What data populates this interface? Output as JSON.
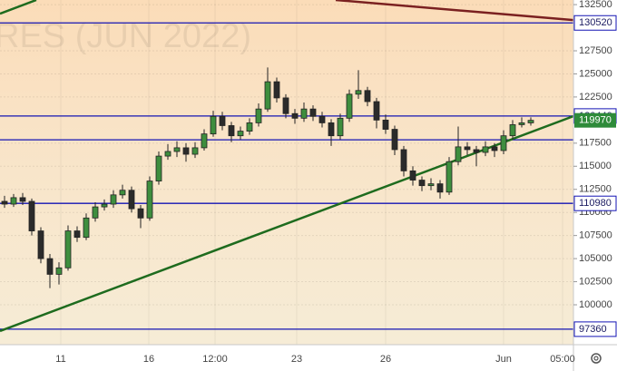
{
  "chart_data": {
    "type": "candlestick",
    "watermark": "RES (JUN 2022)",
    "xlim": [
      -0.5,
      62.7
    ],
    "ylim": [
      95680,
      133000
    ],
    "yticks": [
      132500,
      127500,
      125000,
      122500,
      117500,
      115000,
      112500,
      110000,
      107500,
      105000,
      102500,
      100000
    ],
    "xticks": [
      {
        "value": 6.2,
        "label": "11"
      },
      {
        "value": 15.9,
        "label": "16"
      },
      {
        "value": 23.2,
        "label": "12:00"
      },
      {
        "value": 32.2,
        "label": "23"
      },
      {
        "value": 42,
        "label": "26"
      },
      {
        "value": 55,
        "label": "Jun"
      },
      {
        "value": 61.5,
        "label": "05:00"
      }
    ],
    "grid": true,
    "up_color": "#3e8e3e",
    "down_color": "#2b2b2b",
    "level_color": "#1414b4",
    "levels": [
      130520,
      120440,
      110980,
      97360
    ],
    "unlabeled_levels": [
      117860
    ],
    "trend_lines": [
      {
        "color": "#1e6b1e",
        "points": [
          [
            -0.5,
            97160
          ],
          [
            62.7,
            120420
          ]
        ]
      },
      {
        "color": "#7a2020",
        "points": [
          [
            36.5,
            133000
          ],
          [
            62.7,
            130830
          ]
        ]
      },
      {
        "color": "#1e6b1e",
        "points": [
          [
            -0.5,
            131520
          ],
          [
            3.5,
            133000
          ]
        ]
      }
    ],
    "last_color": "#2e8b3a",
    "candles": [
      [
        111200,
        111800,
        110500,
        110900
      ],
      [
        110900,
        112000,
        110600,
        111600
      ],
      [
        111600,
        112100,
        110800,
        111200
      ],
      [
        111200,
        111500,
        107500,
        108000
      ],
      [
        108000,
        108400,
        104500,
        105000
      ],
      [
        105000,
        105500,
        101800,
        103300
      ],
      [
        103300,
        104600,
        102200,
        104000
      ],
      [
        104000,
        108600,
        103700,
        108000
      ],
      [
        108000,
        108500,
        106800,
        107300
      ],
      [
        107300,
        109900,
        107000,
        109400
      ],
      [
        109400,
        111100,
        109000,
        110600
      ],
      [
        110600,
        111400,
        110200,
        110900
      ],
      [
        110900,
        112400,
        110500,
        111900
      ],
      [
        111900,
        113000,
        111500,
        112400
      ],
      [
        112400,
        112800,
        110000,
        110400
      ],
      [
        110400,
        110800,
        108300,
        109400
      ],
      [
        109400,
        113900,
        109100,
        113400
      ],
      [
        113400,
        116600,
        113000,
        116100
      ],
      [
        116100,
        117400,
        115700,
        116600
      ],
      [
        116600,
        117700,
        116000,
        117000
      ],
      [
        117000,
        117500,
        115500,
        116300
      ],
      [
        116300,
        117600,
        115900,
        117000
      ],
      [
        117000,
        119000,
        116700,
        118500
      ],
      [
        118500,
        121000,
        118200,
        120400
      ],
      [
        120400,
        120900,
        118900,
        119400
      ],
      [
        119400,
        119800,
        117600,
        118300
      ],
      [
        118300,
        119300,
        117900,
        118800
      ],
      [
        118800,
        120200,
        118400,
        119700
      ],
      [
        119700,
        121800,
        119300,
        121200
      ],
      [
        121200,
        125700,
        120900,
        124150
      ],
      [
        124150,
        124600,
        121900,
        122400
      ],
      [
        122400,
        122800,
        120200,
        120700
      ],
      [
        120700,
        121200,
        119600,
        120200
      ],
      [
        120200,
        121900,
        119800,
        121200
      ],
      [
        121200,
        121600,
        119900,
        120400
      ],
      [
        120400,
        120900,
        119200,
        119700
      ],
      [
        119700,
        120100,
        117200,
        118300
      ],
      [
        118300,
        120700,
        117900,
        120200
      ],
      [
        120200,
        123300,
        119800,
        122800
      ],
      [
        122800,
        125400,
        122300,
        123200
      ],
      [
        123200,
        123600,
        121500,
        122000
      ],
      [
        122000,
        122400,
        119100,
        120000
      ],
      [
        120000,
        120600,
        118500,
        119000
      ],
      [
        119000,
        119400,
        116200,
        116800
      ],
      [
        116800,
        117200,
        113900,
        114500
      ],
      [
        114500,
        115000,
        112900,
        113500
      ],
      [
        113500,
        113900,
        112300,
        112900
      ],
      [
        112900,
        113700,
        112400,
        113100
      ],
      [
        113100,
        113500,
        111500,
        112200
      ],
      [
        112200,
        116000,
        111900,
        115500
      ],
      [
        115500,
        119300,
        115100,
        117100
      ],
      [
        117100,
        117600,
        116200,
        116800
      ],
      [
        116800,
        117200,
        115000,
        116500
      ],
      [
        116500,
        117700,
        116100,
        117100
      ],
      [
        117100,
        117500,
        116000,
        116700
      ],
      [
        116700,
        118900,
        116300,
        118300
      ],
      [
        118300,
        120000,
        117900,
        119500
      ],
      [
        119500,
        120300,
        119200,
        119700
      ],
      [
        119700,
        120300,
        119400,
        119970
      ]
    ]
  }
}
